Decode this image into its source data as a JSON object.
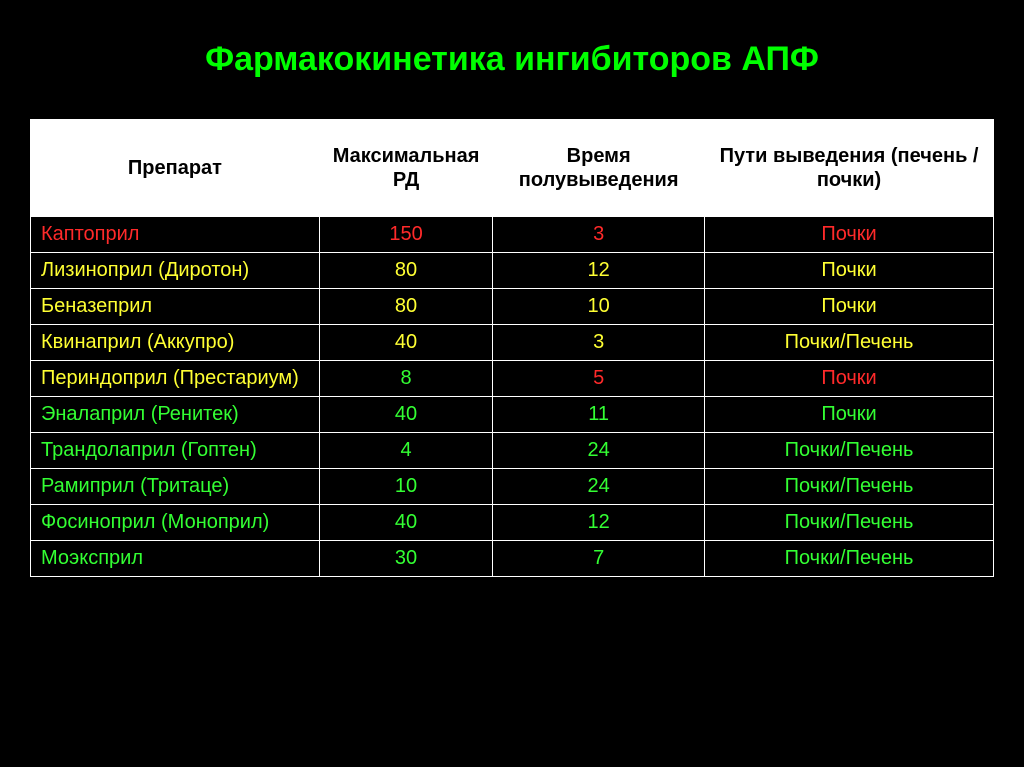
{
  "title": "Фармакокинетика ингибиторов АПФ",
  "table": {
    "columns": [
      "Препарат",
      "Максимальная РД",
      "Время полувыведения",
      "Пути выведения (печень / почки)"
    ],
    "header_bg": "#ffffff",
    "header_fg": "#000000",
    "cell_bg": "#000000",
    "border_color": "#ffffff",
    "col_widths_pct": [
      30,
      18,
      22,
      30
    ],
    "fontsize_header": 20,
    "fontsize_cell": 20,
    "rows": [
      {
        "name": {
          "text": "Каптоприл",
          "color": "c-red"
        },
        "dose": {
          "text": "150",
          "color": "c-red"
        },
        "thalf": {
          "text": "3",
          "color": "c-red"
        },
        "route": {
          "text": "Почки",
          "color": "c-red"
        }
      },
      {
        "name": {
          "text": "Лизиноприл (Диротон)",
          "color": "c-yellow"
        },
        "dose": {
          "text": "80",
          "color": "c-yellow"
        },
        "thalf": {
          "text": "12",
          "color": "c-yellow"
        },
        "route": {
          "text": "Почки",
          "color": "c-yellow"
        }
      },
      {
        "name": {
          "text": "Беназеприл",
          "color": "c-yellow"
        },
        "dose": {
          "text": "80",
          "color": "c-yellow"
        },
        "thalf": {
          "text": "10",
          "color": "c-yellow"
        },
        "route": {
          "text": "Почки",
          "color": "c-yellow"
        }
      },
      {
        "name": {
          "text": "Квинаприл (Аккупро)",
          "color": "c-yellow"
        },
        "dose": {
          "text": "40",
          "color": "c-yellow"
        },
        "thalf": {
          "text": "3",
          "color": "c-yellow"
        },
        "route": {
          "text": "Почки/Печень",
          "color": "c-yellow"
        }
      },
      {
        "name": {
          "text": "Периндоприл (Престариум)",
          "color": "c-yellow"
        },
        "dose": {
          "text": "8",
          "color": "c-green"
        },
        "thalf": {
          "text": "5",
          "color": "c-red"
        },
        "route": {
          "text": "Почки",
          "color": "c-red"
        }
      },
      {
        "name": {
          "text": "Эналаприл (Ренитек)",
          "color": "c-green"
        },
        "dose": {
          "text": "40",
          "color": "c-green"
        },
        "thalf": {
          "text": "11",
          "color": "c-green"
        },
        "route": {
          "text": "Почки",
          "color": "c-green"
        }
      },
      {
        "name": {
          "text": "Трандолаприл (Гоптен)",
          "color": "c-green"
        },
        "dose": {
          "text": "4",
          "color": "c-green"
        },
        "thalf": {
          "text": "24",
          "color": "c-green"
        },
        "route": {
          "text": "Почки/Печень",
          "color": "c-green"
        }
      },
      {
        "name": {
          "text": "Рамиприл  (Тритаце)",
          "color": "c-green"
        },
        "dose": {
          "text": "10",
          "color": "c-green"
        },
        "thalf": {
          "text": "24",
          "color": "c-green"
        },
        "route": {
          "text": "Почки/Печень",
          "color": "c-green"
        }
      },
      {
        "name": {
          "text": "Фосиноприл (Моноприл)",
          "color": "c-green"
        },
        "dose": {
          "text": "40",
          "color": "c-green"
        },
        "thalf": {
          "text": "12",
          "color": "c-green"
        },
        "route": {
          "text": "Почки/Печень",
          "color": "c-green"
        }
      },
      {
        "name": {
          "text": "Моэксприл",
          "color": "c-green"
        },
        "dose": {
          "text": "30",
          "color": "c-green"
        },
        "thalf": {
          "text": "7",
          "color": "c-green"
        },
        "route": {
          "text": "Почки/Печень",
          "color": "c-green"
        }
      }
    ]
  },
  "style": {
    "background_color": "#000000",
    "title_color": "#00ff00",
    "title_fontsize": 34,
    "palette": {
      "red": "#ff2a2a",
      "yellow": "#ffff33",
      "green": "#33ff33"
    }
  }
}
